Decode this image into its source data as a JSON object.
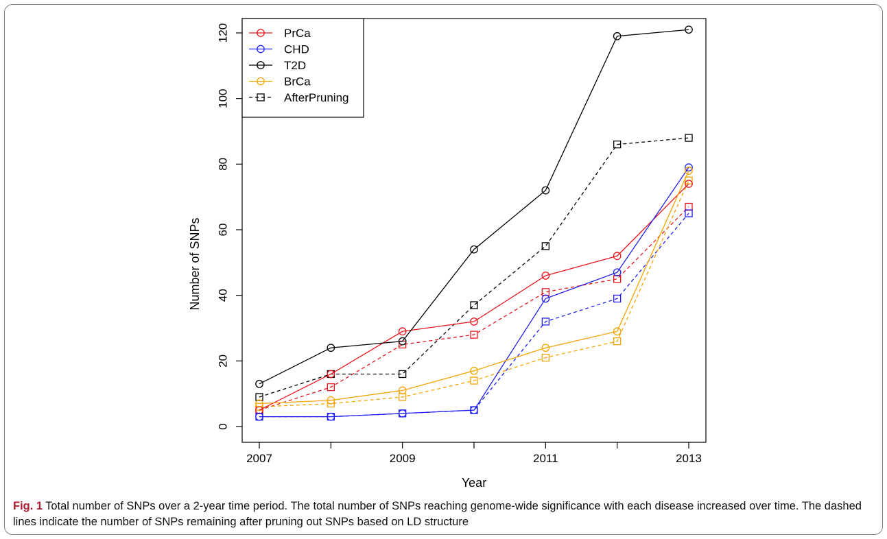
{
  "caption": {
    "label": "Fig. 1",
    "text": "Total number of SNPs over a 2-year time period. The total number of SNPs reaching genome-wide significance with each disease increased over time. The dashed lines indicate the number of SNPs remaining after pruning out SNPs based on LD structure"
  },
  "chart_data": {
    "type": "line",
    "xlabel": "Year",
    "ylabel": "Number of SNPs",
    "xlim": [
      2007,
      2013
    ],
    "ylim": [
      0,
      120
    ],
    "x": [
      2007,
      2008,
      2009,
      2010,
      2011,
      2012,
      2013
    ],
    "x_tick_labels": [
      "2007",
      "2009",
      "2011",
      "2013"
    ],
    "x_ticks": [
      2007,
      2008,
      2009,
      2010,
      2011,
      2012,
      2013
    ],
    "y_ticks": [
      0,
      20,
      40,
      60,
      80,
      100,
      120
    ],
    "grid": false,
    "legend_position": "top-left",
    "series": [
      {
        "name": "PrCa",
        "color": "#e8141b",
        "style": "solid",
        "marker": "circle",
        "values": [
          5,
          16,
          29,
          32,
          46,
          52,
          74
        ]
      },
      {
        "name": "CHD",
        "color": "#1f1ff0",
        "style": "solid",
        "marker": "circle",
        "values": [
          3,
          3,
          4,
          5,
          39,
          47,
          79
        ]
      },
      {
        "name": "T2D",
        "color": "#000000",
        "style": "solid",
        "marker": "circle",
        "values": [
          13,
          24,
          26,
          54,
          72,
          119,
          121
        ]
      },
      {
        "name": "BrCa",
        "color": "#f5a300",
        "style": "solid",
        "marker": "circle",
        "values": [
          7,
          8,
          11,
          17,
          24,
          29,
          78
        ]
      },
      {
        "name": "AfterPruning",
        "color": "#000000",
        "style": "dashed",
        "marker": "square",
        "in_legend": true,
        "values": [
          9,
          16,
          16,
          37,
          55,
          86,
          88
        ]
      },
      {
        "color": "#e8141b",
        "style": "dashed",
        "marker": "square",
        "in_legend": false,
        "values": [
          5,
          12,
          25,
          28,
          41,
          45,
          67
        ]
      },
      {
        "color": "#1f1ff0",
        "style": "dashed",
        "marker": "square",
        "in_legend": false,
        "values": [
          3,
          3,
          4,
          5,
          32,
          39,
          65
        ]
      },
      {
        "color": "#f5a300",
        "style": "dashed",
        "marker": "square",
        "in_legend": false,
        "values": [
          6,
          7,
          9,
          14,
          21,
          26,
          75
        ]
      }
    ]
  }
}
